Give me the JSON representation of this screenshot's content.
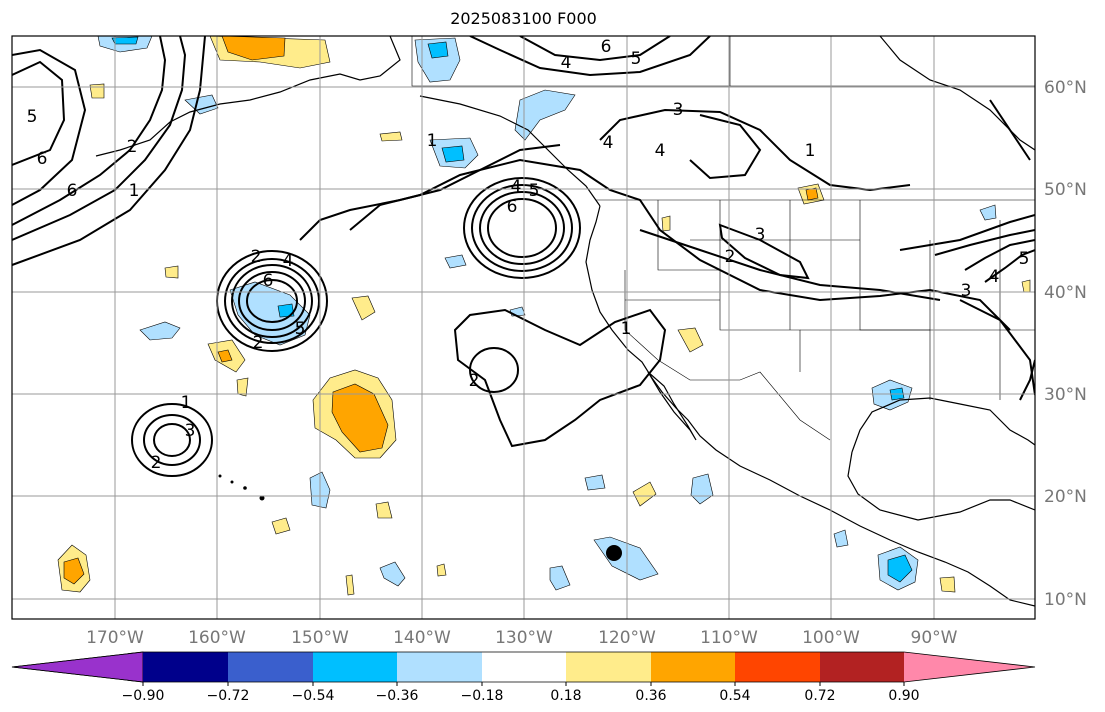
{
  "title": "2025083100 F000",
  "lon_labels": [
    "170°W",
    "160°W",
    "150°W",
    "140°W",
    "130°W",
    "120°W",
    "110°W",
    "100°W",
    "90°W"
  ],
  "lat_labels": [
    "60°N",
    "50°N",
    "40°N",
    "30°N",
    "20°N",
    "10°N"
  ],
  "colorbar": {
    "ticks": [
      "−0.90",
      "−0.72",
      "−0.54",
      "−0.36",
      "−0.18",
      "0.18",
      "0.36",
      "0.54",
      "0.72",
      "0.90"
    ],
    "colors": [
      "#9932cc",
      "#00008b",
      "#3a5fcd",
      "#00bfff",
      "#b0e0ff",
      "#ffffff",
      "#ffec8b",
      "#ffa500",
      "#ff4500",
      "#b22222",
      "#ff88aa"
    ]
  },
  "contour_labels": [
    "6",
    "5",
    "4",
    "3",
    "1",
    "5",
    "6",
    "6",
    "1",
    "2",
    "4",
    "4",
    "6",
    "2",
    "4",
    "5",
    "6",
    "3",
    "2",
    "1",
    "2",
    "1",
    "3",
    "2",
    "3",
    "2",
    "1",
    "4",
    "5",
    "5",
    "4"
  ],
  "colors": {
    "fill_light_blue": "#b0e0ff",
    "fill_blue": "#00bfff",
    "fill_yellow": "#ffec8b",
    "fill_orange": "#ffa500",
    "grid": "#999999",
    "axis_label": "#777777"
  },
  "marker": "storm-center"
}
